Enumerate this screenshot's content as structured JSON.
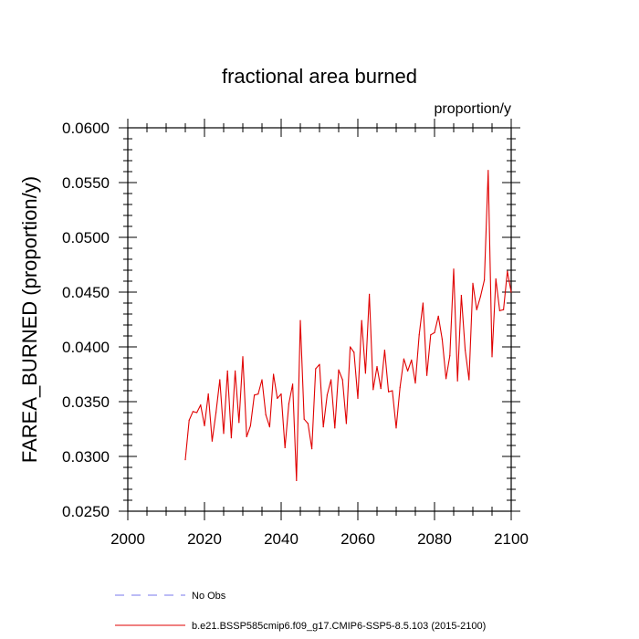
{
  "chart_data": {
    "type": "line",
    "title": "fractional area burned",
    "units": "proportion/y",
    "ylabel": "FAREA_BURNED  (proportion/y)",
    "xlabel": "",
    "xlim": [
      2000,
      2100
    ],
    "ylim": [
      0.025,
      0.06
    ],
    "x_ticks": [
      2000,
      2020,
      2040,
      2060,
      2080,
      2100
    ],
    "x_tick_labels": [
      "2000",
      "2020",
      "2040",
      "2060",
      "2080",
      "2100"
    ],
    "y_ticks": [
      0.025,
      0.03,
      0.035,
      0.04,
      0.045,
      0.05,
      0.055,
      0.06
    ],
    "y_tick_labels": [
      "0.0250",
      "0.0300",
      "0.0350",
      "0.0400",
      "0.0450",
      "0.0500",
      "0.0550",
      "0.0600"
    ],
    "grid": false,
    "legend_position": "bottom",
    "series": [
      {
        "name": "b.e21.BSSP585cmip6.f09_g17.CMIP6-SSP5-8.5.103 (2015-2100)",
        "color": "#e00000",
        "style": "solid",
        "x": [
          2015,
          2016,
          2017,
          2018,
          2019,
          2020,
          2021,
          2022,
          2023,
          2024,
          2025,
          2026,
          2027,
          2028,
          2029,
          2030,
          2031,
          2032,
          2033,
          2034,
          2035,
          2036,
          2037,
          2038,
          2039,
          2040,
          2041,
          2042,
          2043,
          2044,
          2045,
          2046,
          2047,
          2048,
          2049,
          2050,
          2051,
          2052,
          2053,
          2054,
          2055,
          2056,
          2057,
          2058,
          2059,
          2060,
          2061,
          2062,
          2063,
          2064,
          2065,
          2066,
          2067,
          2068,
          2069,
          2070,
          2071,
          2072,
          2073,
          2074,
          2075,
          2076,
          2077,
          2078,
          2079,
          2080,
          2081,
          2082,
          2083,
          2084,
          2085,
          2086,
          2087,
          2088,
          2089,
          2090,
          2091,
          2092,
          2093,
          2094,
          2095,
          2096,
          2097,
          2098,
          2099,
          2100
        ],
        "values": [
          0.0297,
          0.0333,
          0.0341,
          0.034,
          0.0347,
          0.0328,
          0.0357,
          0.0314,
          0.034,
          0.037,
          0.0321,
          0.0378,
          0.0317,
          0.0378,
          0.0331,
          0.0391,
          0.0318,
          0.0328,
          0.0356,
          0.0357,
          0.037,
          0.0338,
          0.0327,
          0.0375,
          0.0353,
          0.0357,
          0.0308,
          0.0348,
          0.0366,
          0.0278,
          0.0424,
          0.0334,
          0.033,
          0.0307,
          0.038,
          0.0384,
          0.0327,
          0.0356,
          0.037,
          0.0326,
          0.0379,
          0.037,
          0.033,
          0.04,
          0.0395,
          0.0353,
          0.0424,
          0.0376,
          0.0448,
          0.0361,
          0.0382,
          0.0362,
          0.0397,
          0.0359,
          0.036,
          0.0326,
          0.0363,
          0.0389,
          0.0378,
          0.0388,
          0.0367,
          0.0411,
          0.044,
          0.0374,
          0.0411,
          0.0413,
          0.0428,
          0.0407,
          0.0371,
          0.0392,
          0.0471,
          0.0369,
          0.0447,
          0.0397,
          0.037,
          0.0458,
          0.0434,
          0.0446,
          0.0461,
          0.0561,
          0.0391,
          0.0462,
          0.0433,
          0.0434,
          0.0469,
          0.045
        ]
      },
      {
        "name": "No Obs",
        "color": "#7777ee",
        "style": "dashed",
        "x": [],
        "values": []
      }
    ]
  }
}
